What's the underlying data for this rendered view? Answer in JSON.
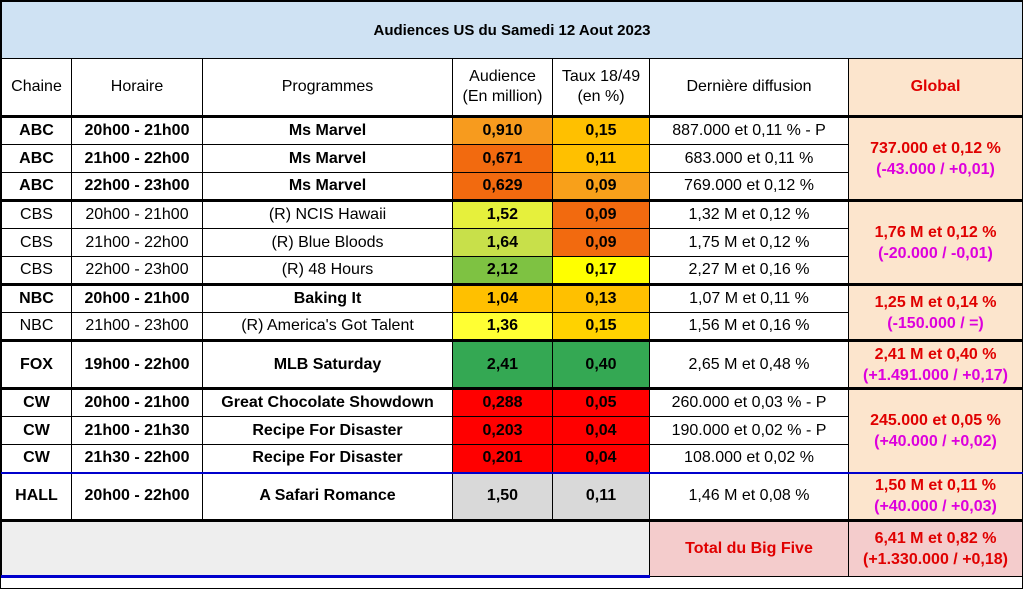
{
  "title": "Audiences US du Samedi 12 Aout 2023",
  "headers": {
    "chaine": "Chaine",
    "horaire": "Horaire",
    "programmes": "Programmes",
    "audience_l1": "Audience",
    "audience_l2": "(En million)",
    "taux_l1": "Taux 18/49",
    "taux_l2": "(en %)",
    "derniere": "Dernière diffusion",
    "global": "Global"
  },
  "rows": [
    {
      "chaine": "ABC",
      "horaire": "20h00 - 21h00",
      "programme": "Ms Marvel",
      "audience": "0,910",
      "taux": "0,15",
      "derniere": "887.000 et 0,11 % - P",
      "bold": true,
      "aud_color": "#f79b1e",
      "taux_color": "#ffc000"
    },
    {
      "chaine": "ABC",
      "horaire": "21h00 - 22h00",
      "programme": "Ms Marvel",
      "audience": "0,671",
      "taux": "0,11",
      "derniere": "683.000 et 0,11 %",
      "bold": true,
      "aud_color": "#f26a0f",
      "taux_color": "#ffc000"
    },
    {
      "chaine": "ABC",
      "horaire": "22h00 - 23h00",
      "programme": "Ms Marvel",
      "audience": "0,629",
      "taux": "0,09",
      "derniere": "769.000 et 0,12 %",
      "bold": true,
      "aud_color": "#f26a0f",
      "taux_color": "#f8a01a"
    },
    {
      "chaine": "CBS",
      "horaire": "20h00 - 21h00",
      "programme": "(R) NCIS Hawaii",
      "audience": "1,52",
      "taux": "0,09",
      "derniere": "1,32 M et 0,12 %",
      "bold": false,
      "aud_color": "#e6f03c",
      "taux_color": "#f26a0f"
    },
    {
      "chaine": "CBS",
      "horaire": "21h00 - 22h00",
      "programme": "(R) Blue Bloods",
      "audience": "1,64",
      "taux": "0,09",
      "derniere": "1,75 M et 0,12 %",
      "bold": false,
      "aud_color": "#c8e04a",
      "taux_color": "#f26a0f"
    },
    {
      "chaine": "CBS",
      "horaire": "22h00 - 23h00",
      "programme": "(R) 48 Hours",
      "audience": "2,12",
      "taux": "0,17",
      "derniere": "2,27 M et 0,16 %",
      "bold": false,
      "aud_color": "#7ec242",
      "taux_color": "#ffff00"
    },
    {
      "chaine": "NBC",
      "horaire": "20h00 - 21h00",
      "programme": "Baking It",
      "audience": "1,04",
      "taux": "0,13",
      "derniere": "1,07 M et 0,11 %",
      "bold": true,
      "aud_color": "#ffc000",
      "taux_color": "#ffc000"
    },
    {
      "chaine": "NBC",
      "horaire": "21h00 - 23h00",
      "programme": "(R) America's Got Talent",
      "audience": "1,36",
      "taux": "0,15",
      "derniere": "1,56 M et 0,16 %",
      "bold": false,
      "aud_color": "#ffff33",
      "taux_color": "#ffd200"
    },
    {
      "chaine": "FOX",
      "horaire": "19h00 - 22h00",
      "programme": "MLB Saturday",
      "audience": "2,41",
      "taux": "0,40",
      "derniere": "2,65 M et 0,48 %",
      "bold": true,
      "aud_color": "#34a853",
      "taux_color": "#34a853"
    },
    {
      "chaine": "CW",
      "horaire": "20h00 - 21h00",
      "programme": "Great Chocolate Showdown",
      "audience": "0,288",
      "taux": "0,05",
      "derniere": "260.000 et 0,03 % - P",
      "bold": true,
      "aud_color": "#ff0000",
      "taux_color": "#ff0000"
    },
    {
      "chaine": "CW",
      "horaire": "21h00 - 21h30",
      "programme": "Recipe For Disaster",
      "audience": "0,203",
      "taux": "0,04",
      "derniere": "190.000 et 0,02 % - P",
      "bold": true,
      "aud_color": "#ff0000",
      "taux_color": "#ff0000"
    },
    {
      "chaine": "CW",
      "horaire": "21h30 - 22h00",
      "programme": "Recipe For Disaster",
      "audience": "0,201",
      "taux": "0,04",
      "derniere": "108.000 et 0,02 %",
      "bold": true,
      "aud_color": "#ff0000",
      "taux_color": "#ff0000"
    },
    {
      "chaine": "HALL",
      "horaire": "20h00 - 22h00",
      "programme": "A Safari Romance",
      "audience": "1,50",
      "taux": "0,11",
      "derniere": "1,46 M et 0,08 %",
      "bold": true,
      "aud_color": "#d9d9d9",
      "taux_color": "#d9d9d9"
    }
  ],
  "globals": {
    "abc": {
      "main": "737.000 et 0,12 %",
      "sub": "(-43.000 / +0,01)"
    },
    "cbs": {
      "main": "1,76 M et 0,12 %",
      "sub": "(-20.000 / -0,01)"
    },
    "nbc": {
      "main": "1,25 M et 0,14 %",
      "sub": "(-150.000 / =)"
    },
    "fox": {
      "main": "2,41 M et 0,40 %",
      "sub": "(+1.491.000 / +0,17)"
    },
    "cw": {
      "main": "245.000 et 0,05 %",
      "sub": "(+40.000 / +0,02)"
    },
    "hall": {
      "main": "1,50 M et 0,11 %",
      "sub": "(+40.000 / +0,03)"
    }
  },
  "total": {
    "label": "Total du Big Five",
    "main": "6,41 M et 0,82 %",
    "sub": "(+1.330.000 / +0,18)"
  }
}
